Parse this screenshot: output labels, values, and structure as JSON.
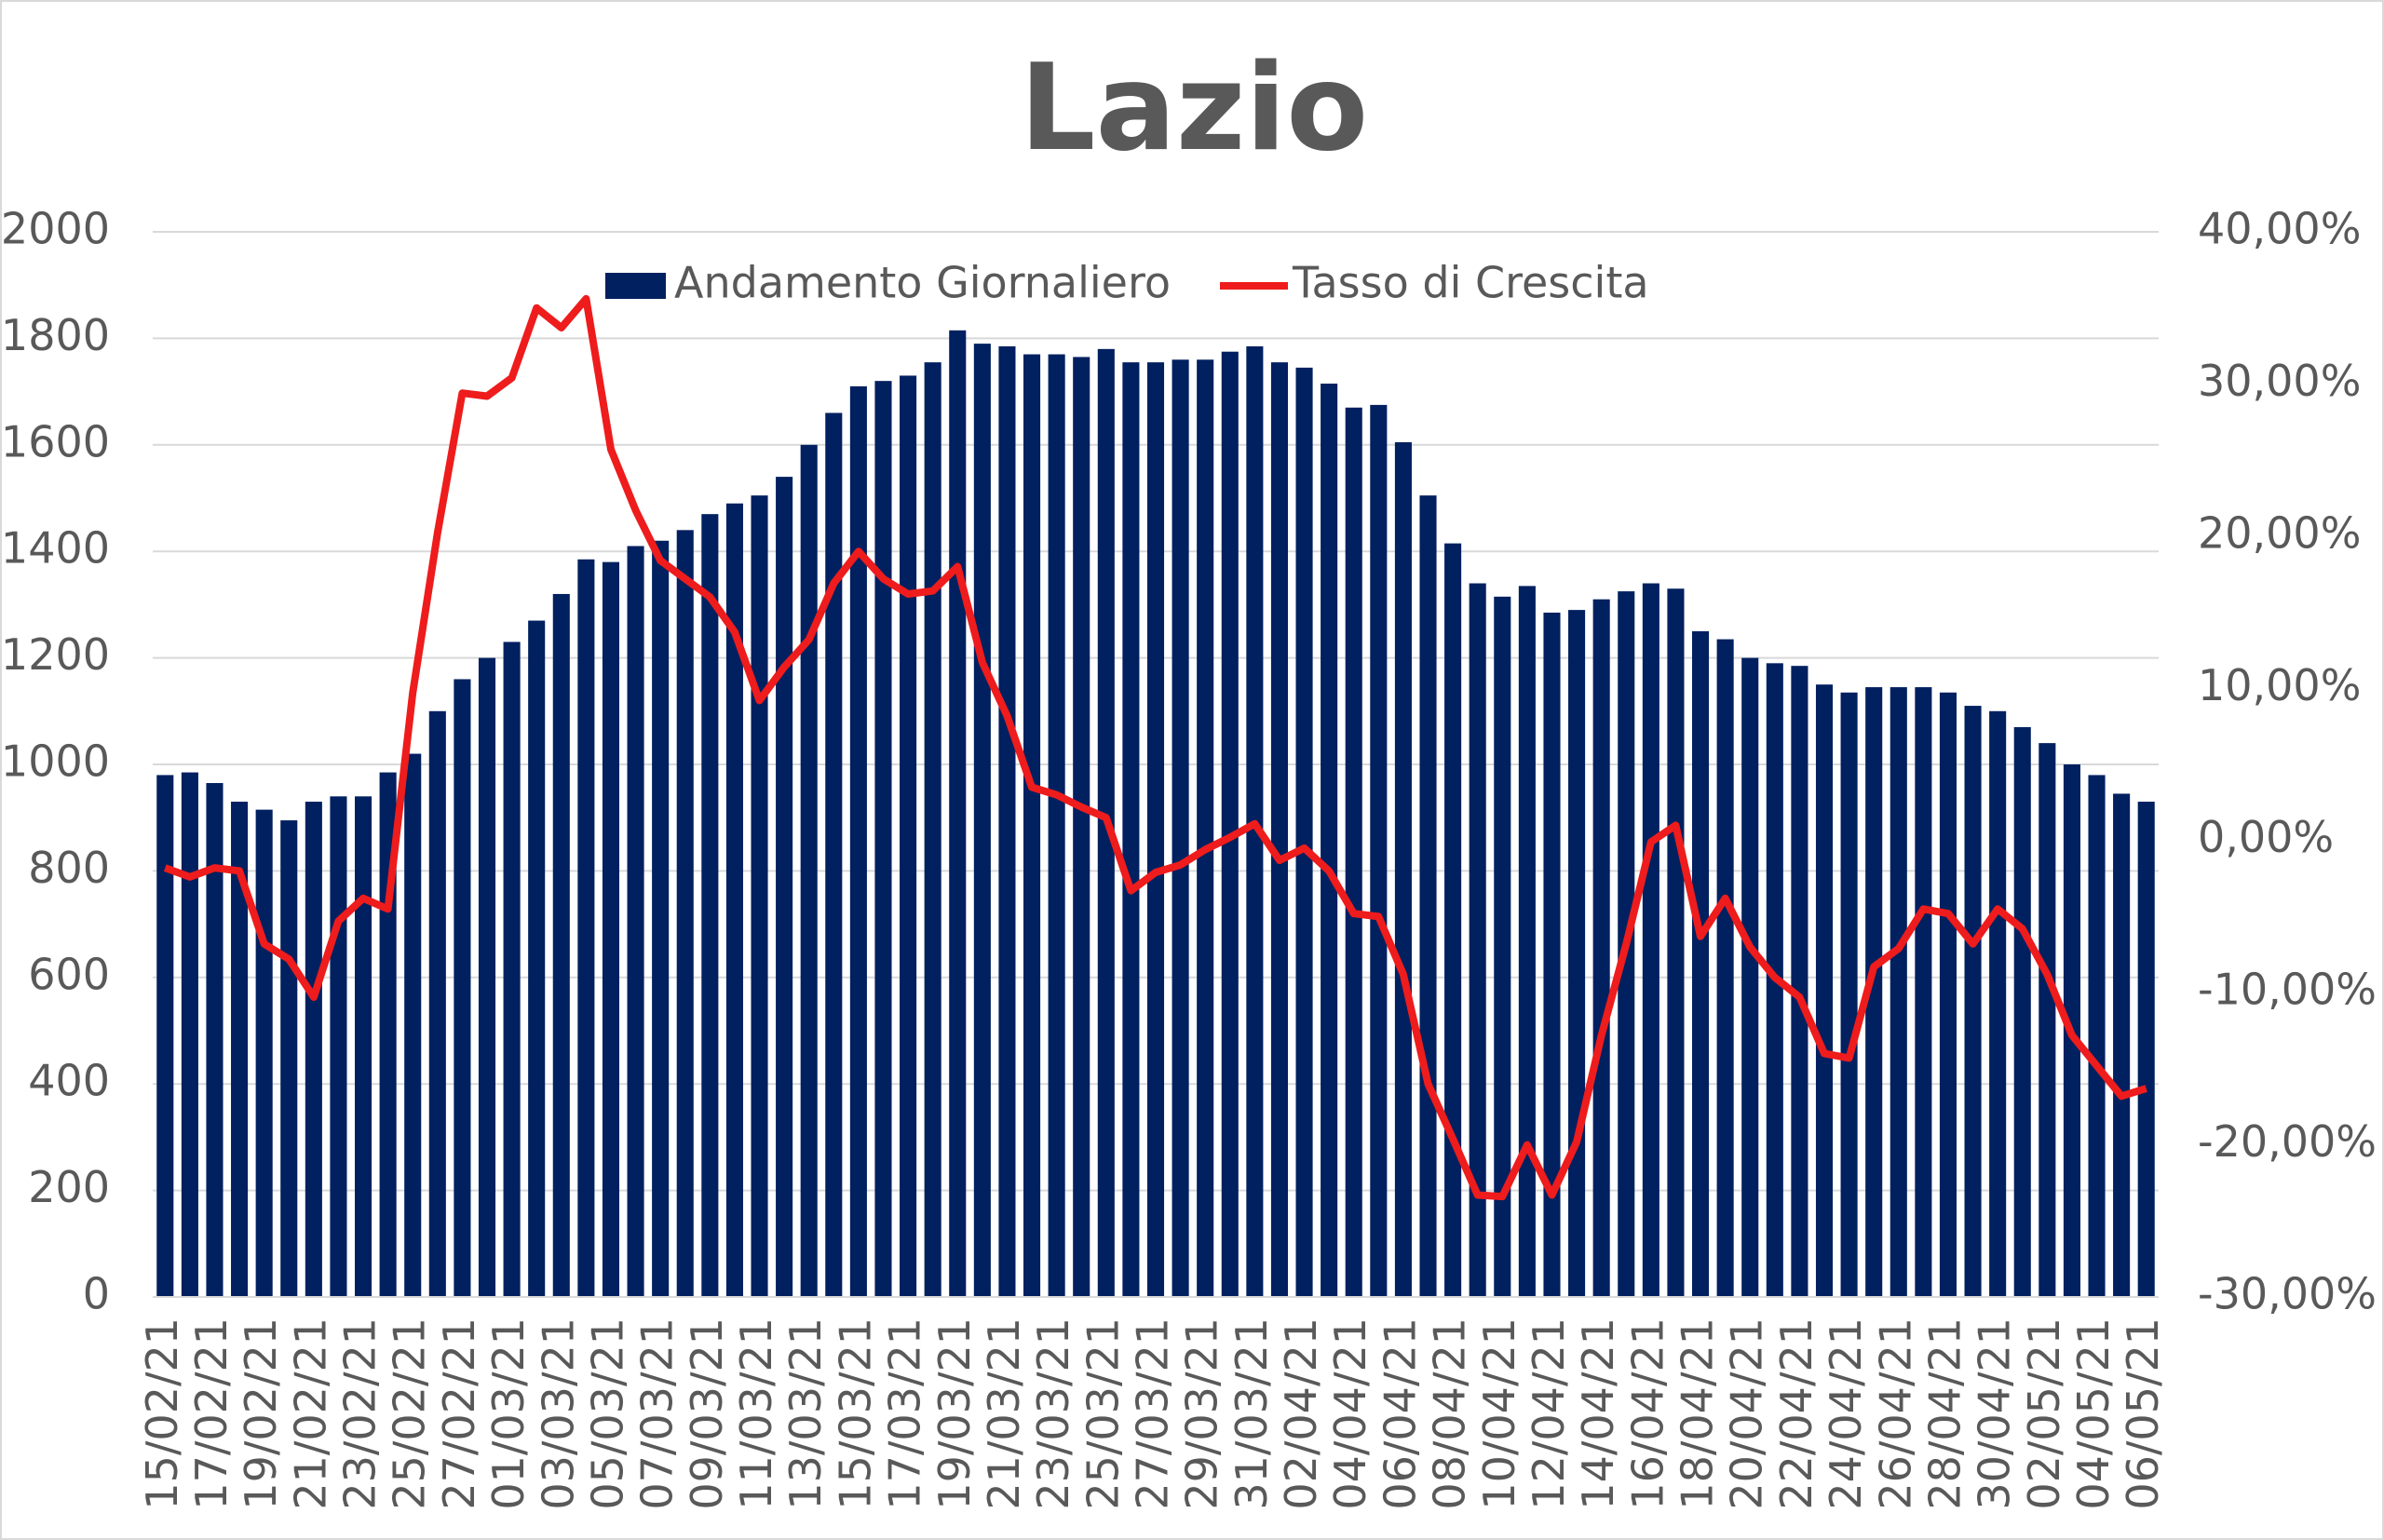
{
  "chart_data": {
    "type": "bar-line",
    "title": "Lazio",
    "categories": [
      "15/02/21",
      null,
      "17/02/21",
      null,
      "19/02/21",
      null,
      "21/02/21",
      null,
      "23/02/21",
      null,
      "25/02/21",
      null,
      "27/02/21",
      null,
      "01/03/21",
      null,
      "03/03/21",
      null,
      "05/03/21",
      null,
      "07/03/21",
      null,
      "09/03/21",
      null,
      "11/03/21",
      null,
      "13/03/21",
      null,
      "15/03/21",
      null,
      "17/03/21",
      null,
      "19/03/21",
      null,
      "21/03/21",
      null,
      "23/03/21",
      null,
      "25/03/21",
      null,
      "27/03/21",
      null,
      "29/03/21",
      null,
      "31/03/21",
      null,
      "02/04/21",
      null,
      "04/04/21",
      null,
      "06/04/21",
      null,
      "08/04/21",
      null,
      "10/04/21",
      null,
      "12/04/21",
      null,
      "14/04/21",
      null,
      "16/04/21",
      null,
      "18/04/21",
      null,
      "20/04/21",
      null,
      "22/04/21",
      null,
      "24/04/21",
      null,
      "26/04/21",
      null,
      "28/04/21",
      null,
      "30/04/21",
      null,
      "02/05/21",
      null,
      "04/05/21",
      null,
      "06/05/21"
    ],
    "series": [
      {
        "name": "Andamento Giornaliero",
        "type": "bar",
        "color": "#002060",
        "values": [
          980,
          985,
          965,
          930,
          915,
          895,
          930,
          940,
          940,
          985,
          1020,
          1100,
          1160,
          1200,
          1230,
          1270,
          1320,
          1385,
          1380,
          1410,
          1420,
          1440,
          1470,
          1490,
          1505,
          1540,
          1600,
          1660,
          1710,
          1720,
          1730,
          1755,
          1815,
          1790,
          1785,
          1770,
          1770,
          1765,
          1780,
          1755,
          1755,
          1760,
          1760,
          1775,
          1785,
          1755,
          1745,
          1715,
          1670,
          1675,
          1605,
          1505,
          1415,
          1340,
          1315,
          1335,
          1285,
          1290,
          1310,
          1325,
          1340,
          1330,
          1250,
          1235,
          1200,
          1190,
          1185,
          1150,
          1135,
          1145,
          1145,
          1145,
          1135,
          1110,
          1100,
          1070,
          1040,
          1000,
          980,
          945,
          930
        ]
      },
      {
        "name": "Tasso di Crescita",
        "type": "line",
        "axis": "y2",
        "color": "#ee1c1c",
        "values": [
          -1.8,
          -2.4,
          -1.8,
          -2,
          -6.8,
          -7.8,
          -10.3,
          -5.3,
          -3.8,
          -4.5,
          9.7,
          20.2,
          29.4,
          29.2,
          30.4,
          35,
          33.7,
          35.6,
          25.7,
          21.7,
          18.4,
          17.2,
          16,
          13.7,
          9.2,
          11.4,
          13.2,
          16.9,
          19,
          17.2,
          16.2,
          16.4,
          18,
          11.7,
          8.2,
          3.5,
          3,
          2.2,
          1.5,
          -3.3,
          -2.1,
          -1.6,
          -0.6,
          0.2,
          1.1,
          -1.3,
          -0.5,
          -2,
          -4.8,
          -5,
          -8.8,
          -16,
          -19.6,
          -23.3,
          -23.4,
          -20,
          -23.3,
          -19.8,
          -12.8,
          -6.8,
          -0.1,
          1,
          -6.3,
          -3.8,
          -7,
          -9,
          -10.3,
          -14,
          -14.3,
          -8.3,
          -7.1,
          -4.5,
          -4.8,
          -6.8,
          -4.5,
          -5.8,
          -8.8,
          -12.8,
          -14.8,
          -16.8,
          -16.3
        ]
      }
    ],
    "ylim": [
      0,
      2000
    ],
    "yticks": [
      0,
      200,
      400,
      600,
      800,
      1000,
      1200,
      1400,
      1600,
      1800,
      2000
    ],
    "y2lim": [
      -30,
      40
    ],
    "y2ticks": [
      {
        "value": -30,
        "label": "-30,00%"
      },
      {
        "value": -20,
        "label": "-20,00%"
      },
      {
        "value": -10,
        "label": "-10,00%"
      },
      {
        "value": 0,
        "label": "0,00%"
      },
      {
        "value": 10,
        "label": "10,00%"
      },
      {
        "value": 20,
        "label": "20,00%"
      },
      {
        "value": 30,
        "label": "30,00%"
      },
      {
        "value": 40,
        "label": "40,00%"
      }
    ],
    "grid": true,
    "legend": "top"
  }
}
